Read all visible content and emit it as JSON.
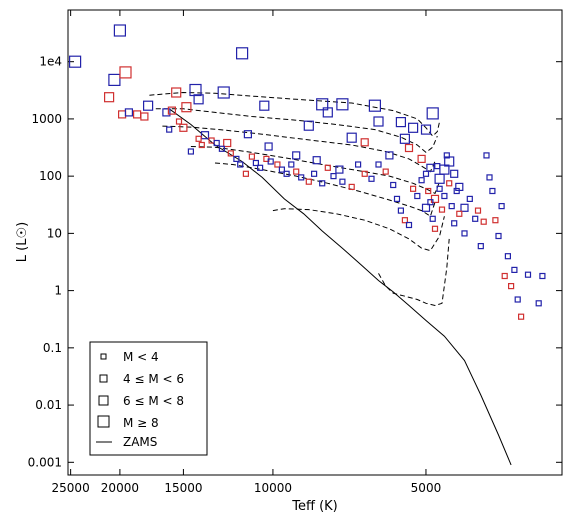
{
  "chart_data": {
    "type": "scatter",
    "title": "",
    "xlabel": "Teff (K)",
    "ylabel": "L (L☉)",
    "x_axis": {
      "log": true,
      "reversed": true,
      "range": [
        25300,
        2700
      ],
      "ticks": [
        25000,
        20000,
        15000,
        10000,
        5000
      ],
      "tick_labels": [
        "25000",
        "20000",
        "15000",
        "10000",
        "5000"
      ]
    },
    "y_axis": {
      "log": true,
      "range": [
        0.0006,
        80000
      ],
      "ticks": [
        0.001,
        0.01,
        0.1,
        1,
        10,
        100,
        1000,
        10000
      ],
      "tick_labels": [
        "0.001",
        "0.01",
        "0.1",
        "1",
        "10",
        "100",
        "1000",
        "1e4"
      ]
    },
    "grid": false,
    "legend": {
      "placement": "bottom-left",
      "entries": [
        {
          "label": "M < 4",
          "marker": "square",
          "size": "small"
        },
        {
          "label": "4 ≤ M < 6",
          "marker": "square",
          "size": "medium"
        },
        {
          "label": "6 ≤ M < 8",
          "marker": "square",
          "size": "large"
        },
        {
          "label": "M ≥ 8",
          "marker": "square",
          "size": "xlarge"
        },
        {
          "label": "ZAMS",
          "marker": "line"
        }
      ]
    },
    "colors": {
      "blue": "#2222aa",
      "red": "#d03030",
      "line": "#000000"
    },
    "zams": {
      "teff": [
        16000,
        14500,
        13000,
        11500,
        10500,
        9500,
        8700,
        8000,
        7300,
        6700,
        6200,
        5800,
        5400,
        5000,
        4600,
        4200,
        3900,
        3600,
        3400
      ],
      "lum": [
        1500,
        800,
        350,
        180,
        95,
        40,
        22,
        11,
        5.5,
        2.8,
        1.5,
        0.95,
        0.55,
        0.3,
        0.16,
        0.06,
        0.015,
        0.003,
        0.0009
      ]
    },
    "tracks": [
      {
        "teff": [
          17500,
          15000,
          13000,
          11000,
          9000,
          7000,
          5800,
          5200,
          5000,
          4850,
          4750,
          4700
        ],
        "lum": [
          2600,
          2900,
          2800,
          2500,
          2200,
          1900,
          1400,
          1000,
          700,
          500,
          600,
          900
        ]
      },
      {
        "teff": [
          17000,
          15000,
          13000,
          11000,
          9000,
          7500,
          6300,
          5600,
          5200,
          5000,
          4850,
          4750
        ],
        "lum": [
          1500,
          1500,
          1300,
          1100,
          950,
          800,
          650,
          480,
          350,
          260,
          320,
          500
        ]
      },
      {
        "teff": [
          16500,
          14500,
          12500,
          10500,
          8500,
          7000,
          6000,
          5400,
          5100,
          4900,
          4800
        ],
        "lum": [
          750,
          720,
          640,
          540,
          430,
          350,
          270,
          200,
          150,
          120,
          180
        ]
      },
      {
        "teff": [
          14500,
          13000,
          11000,
          9500,
          8000,
          6800,
          5900,
          5300,
          5000,
          4800,
          4700
        ],
        "lum": [
          330,
          320,
          260,
          210,
          160,
          125,
          100,
          75,
          60,
          50,
          80
        ]
      },
      {
        "teff": [
          13000,
          12000,
          10500,
          9000,
          7800,
          6800,
          6000,
          5400,
          5100,
          4900,
          4800
        ],
        "lum": [
          170,
          160,
          130,
          100,
          75,
          55,
          40,
          30,
          25,
          20,
          35
        ]
      },
      {
        "teff": [
          10000,
          9500,
          8500,
          7500,
          6600,
          5900,
          5400,
          5100,
          4900,
          4700,
          4600
        ],
        "lum": [
          25,
          27,
          26,
          22,
          17,
          12,
          8,
          5.5,
          5,
          9,
          20
        ]
      },
      {
        "teff": [
          6200,
          6000,
          5800,
          5500,
          5200,
          5000,
          4800,
          4650,
          4550,
          4500
        ],
        "lum": [
          2,
          1.2,
          0.9,
          0.8,
          0.7,
          0.6,
          0.55,
          0.6,
          2.5,
          8
        ]
      }
    ],
    "points": [
      {
        "teff": 24500,
        "lum": 10000,
        "size": "xlarge",
        "color": "blue"
      },
      {
        "teff": 20000,
        "lum": 35000,
        "size": "xlarge",
        "color": "blue"
      },
      {
        "teff": 20500,
        "lum": 4800,
        "size": "xlarge",
        "color": "blue"
      },
      {
        "teff": 19500,
        "lum": 6500,
        "size": "xlarge",
        "color": "red"
      },
      {
        "teff": 11500,
        "lum": 14000,
        "size": "xlarge",
        "color": "blue"
      },
      {
        "teff": 14200,
        "lum": 3200,
        "size": "xlarge",
        "color": "blue"
      },
      {
        "teff": 12500,
        "lum": 2900,
        "size": "xlarge",
        "color": "blue"
      },
      {
        "teff": 8000,
        "lum": 1800,
        "size": "xlarge",
        "color": "blue"
      },
      {
        "teff": 7300,
        "lum": 1800,
        "size": "xlarge",
        "color": "blue"
      },
      {
        "teff": 6300,
        "lum": 1700,
        "size": "xlarge",
        "color": "blue"
      },
      {
        "teff": 4850,
        "lum": 1250,
        "size": "xlarge",
        "color": "blue"
      },
      {
        "teff": 21000,
        "lum": 2400,
        "size": "large",
        "color": "red"
      },
      {
        "teff": 15500,
        "lum": 2900,
        "size": "large",
        "color": "red"
      },
      {
        "teff": 14000,
        "lum": 2200,
        "size": "large",
        "color": "blue"
      },
      {
        "teff": 14800,
        "lum": 1600,
        "size": "large",
        "color": "red"
      },
      {
        "teff": 17600,
        "lum": 1700,
        "size": "large",
        "color": "blue"
      },
      {
        "teff": 10400,
        "lum": 1700,
        "size": "large",
        "color": "blue"
      },
      {
        "teff": 8500,
        "lum": 760,
        "size": "large",
        "color": "blue"
      },
      {
        "teff": 7800,
        "lum": 1300,
        "size": "large",
        "color": "blue"
      },
      {
        "teff": 7000,
        "lum": 470,
        "size": "large",
        "color": "blue"
      },
      {
        "teff": 6200,
        "lum": 900,
        "size": "large",
        "color": "blue"
      },
      {
        "teff": 5600,
        "lum": 880,
        "size": "large",
        "color": "blue"
      },
      {
        "teff": 5300,
        "lum": 700,
        "size": "large",
        "color": "blue"
      },
      {
        "teff": 5000,
        "lum": 650,
        "size": "large",
        "color": "blue"
      },
      {
        "teff": 5500,
        "lum": 450,
        "size": "large",
        "color": "blue"
      },
      {
        "teff": 4500,
        "lum": 180,
        "size": "large",
        "color": "blue"
      },
      {
        "teff": 4600,
        "lum": 130,
        "size": "large",
        "color": "blue"
      },
      {
        "teff": 4700,
        "lum": 90,
        "size": "large",
        "color": "blue"
      },
      {
        "teff": 19800,
        "lum": 1200,
        "size": "medium",
        "color": "red"
      },
      {
        "teff": 19200,
        "lum": 1300,
        "size": "medium",
        "color": "blue"
      },
      {
        "teff": 18500,
        "lum": 1200,
        "size": "medium",
        "color": "red"
      },
      {
        "teff": 17900,
        "lum": 1100,
        "size": "medium",
        "color": "red"
      },
      {
        "teff": 16200,
        "lum": 1300,
        "size": "medium",
        "color": "blue"
      },
      {
        "teff": 15800,
        "lum": 1400,
        "size": "medium",
        "color": "red"
      },
      {
        "teff": 15000,
        "lum": 700,
        "size": "medium",
        "color": "red"
      },
      {
        "teff": 13600,
        "lum": 520,
        "size": "medium",
        "color": "blue"
      },
      {
        "teff": 12300,
        "lum": 380,
        "size": "medium",
        "color": "red"
      },
      {
        "teff": 11200,
        "lum": 540,
        "size": "medium",
        "color": "blue"
      },
      {
        "teff": 10200,
        "lum": 330,
        "size": "medium",
        "color": "blue"
      },
      {
        "teff": 9000,
        "lum": 230,
        "size": "medium",
        "color": "blue"
      },
      {
        "teff": 8200,
        "lum": 190,
        "size": "medium",
        "color": "blue"
      },
      {
        "teff": 7400,
        "lum": 130,
        "size": "medium",
        "color": "blue"
      },
      {
        "teff": 6600,
        "lum": 390,
        "size": "medium",
        "color": "red"
      },
      {
        "teff": 5900,
        "lum": 230,
        "size": "medium",
        "color": "blue"
      },
      {
        "teff": 5400,
        "lum": 310,
        "size": "medium",
        "color": "red"
      },
      {
        "teff": 5100,
        "lum": 200,
        "size": "medium",
        "color": "red"
      },
      {
        "teff": 4900,
        "lum": 140,
        "size": "medium",
        "color": "blue"
      },
      {
        "teff": 4400,
        "lum": 110,
        "size": "medium",
        "color": "blue"
      },
      {
        "teff": 4300,
        "lum": 65,
        "size": "medium",
        "color": "blue"
      },
      {
        "teff": 4200,
        "lum": 28,
        "size": "medium",
        "color": "blue"
      },
      {
        "teff": 4800,
        "lum": 40,
        "size": "medium",
        "color": "red"
      },
      {
        "teff": 5000,
        "lum": 28,
        "size": "medium",
        "color": "blue"
      },
      {
        "teff": 16000,
        "lum": 650,
        "size": "small",
        "color": "blue"
      },
      {
        "teff": 15300,
        "lum": 900,
        "size": "small",
        "color": "red"
      },
      {
        "teff": 14500,
        "lum": 270,
        "size": "small",
        "color": "blue"
      },
      {
        "teff": 14000,
        "lum": 450,
        "size": "small",
        "color": "red"
      },
      {
        "teff": 13800,
        "lum": 350,
        "size": "small",
        "color": "red"
      },
      {
        "teff": 13200,
        "lum": 420,
        "size": "small",
        "color": "red"
      },
      {
        "teff": 12900,
        "lum": 380,
        "size": "small",
        "color": "blue"
      },
      {
        "teff": 12600,
        "lum": 300,
        "size": "small",
        "color": "blue"
      },
      {
        "teff": 12100,
        "lum": 250,
        "size": "small",
        "color": "red"
      },
      {
        "teff": 11800,
        "lum": 200,
        "size": "small",
        "color": "blue"
      },
      {
        "teff": 11600,
        "lum": 160,
        "size": "small",
        "color": "blue"
      },
      {
        "teff": 11300,
        "lum": 110,
        "size": "small",
        "color": "red"
      },
      {
        "teff": 11000,
        "lum": 220,
        "size": "small",
        "color": "red"
      },
      {
        "teff": 10800,
        "lum": 170,
        "size": "small",
        "color": "blue"
      },
      {
        "teff": 10600,
        "lum": 140,
        "size": "small",
        "color": "blue"
      },
      {
        "teff": 10300,
        "lum": 200,
        "size": "small",
        "color": "red"
      },
      {
        "teff": 10100,
        "lum": 180,
        "size": "small",
        "color": "blue"
      },
      {
        "teff": 9800,
        "lum": 160,
        "size": "small",
        "color": "red"
      },
      {
        "teff": 9600,
        "lum": 130,
        "size": "small",
        "color": "blue"
      },
      {
        "teff": 9400,
        "lum": 110,
        "size": "small",
        "color": "blue"
      },
      {
        "teff": 9200,
        "lum": 160,
        "size": "small",
        "color": "blue"
      },
      {
        "teff": 9000,
        "lum": 120,
        "size": "small",
        "color": "red"
      },
      {
        "teff": 8800,
        "lum": 95,
        "size": "small",
        "color": "blue"
      },
      {
        "teff": 8500,
        "lum": 80,
        "size": "small",
        "color": "red"
      },
      {
        "teff": 8300,
        "lum": 110,
        "size": "small",
        "color": "blue"
      },
      {
        "teff": 8000,
        "lum": 75,
        "size": "small",
        "color": "blue"
      },
      {
        "teff": 7800,
        "lum": 140,
        "size": "small",
        "color": "red"
      },
      {
        "teff": 7600,
        "lum": 100,
        "size": "small",
        "color": "blue"
      },
      {
        "teff": 7300,
        "lum": 80,
        "size": "small",
        "color": "blue"
      },
      {
        "teff": 7000,
        "lum": 65,
        "size": "small",
        "color": "red"
      },
      {
        "teff": 6800,
        "lum": 160,
        "size": "small",
        "color": "blue"
      },
      {
        "teff": 6600,
        "lum": 110,
        "size": "small",
        "color": "red"
      },
      {
        "teff": 6400,
        "lum": 90,
        "size": "small",
        "color": "blue"
      },
      {
        "teff": 6200,
        "lum": 160,
        "size": "small",
        "color": "blue"
      },
      {
        "teff": 6000,
        "lum": 120,
        "size": "small",
        "color": "red"
      },
      {
        "teff": 5800,
        "lum": 70,
        "size": "small",
        "color": "blue"
      },
      {
        "teff": 5700,
        "lum": 40,
        "size": "small",
        "color": "blue"
      },
      {
        "teff": 5600,
        "lum": 25,
        "size": "small",
        "color": "blue"
      },
      {
        "teff": 5500,
        "lum": 17,
        "size": "small",
        "color": "red"
      },
      {
        "teff": 5400,
        "lum": 14,
        "size": "small",
        "color": "blue"
      },
      {
        "teff": 5300,
        "lum": 60,
        "size": "small",
        "color": "red"
      },
      {
        "teff": 5200,
        "lum": 45,
        "size": "small",
        "color": "blue"
      },
      {
        "teff": 5100,
        "lum": 85,
        "size": "small",
        "color": "blue"
      },
      {
        "teff": 5000,
        "lum": 110,
        "size": "small",
        "color": "blue"
      },
      {
        "teff": 4950,
        "lum": 55,
        "size": "small",
        "color": "red"
      },
      {
        "teff": 4900,
        "lum": 35,
        "size": "small",
        "color": "blue"
      },
      {
        "teff": 4850,
        "lum": 18,
        "size": "small",
        "color": "blue"
      },
      {
        "teff": 4800,
        "lum": 12,
        "size": "small",
        "color": "red"
      },
      {
        "teff": 4750,
        "lum": 150,
        "size": "small",
        "color": "blue"
      },
      {
        "teff": 4700,
        "lum": 60,
        "size": "small",
        "color": "blue"
      },
      {
        "teff": 4650,
        "lum": 26,
        "size": "small",
        "color": "red"
      },
      {
        "teff": 4600,
        "lum": 45,
        "size": "small",
        "color": "blue"
      },
      {
        "teff": 4550,
        "lum": 230,
        "size": "small",
        "color": "blue"
      },
      {
        "teff": 4500,
        "lum": 75,
        "size": "small",
        "color": "red"
      },
      {
        "teff": 4450,
        "lum": 30,
        "size": "small",
        "color": "blue"
      },
      {
        "teff": 4400,
        "lum": 15,
        "size": "small",
        "color": "blue"
      },
      {
        "teff": 4350,
        "lum": 55,
        "size": "small",
        "color": "blue"
      },
      {
        "teff": 4300,
        "lum": 22,
        "size": "small",
        "color": "red"
      },
      {
        "teff": 4200,
        "lum": 10,
        "size": "small",
        "color": "blue"
      },
      {
        "teff": 4100,
        "lum": 40,
        "size": "small",
        "color": "blue"
      },
      {
        "teff": 4000,
        "lum": 18,
        "size": "small",
        "color": "blue"
      },
      {
        "teff": 3950,
        "lum": 25,
        "size": "small",
        "color": "red"
      },
      {
        "teff": 3900,
        "lum": 6,
        "size": "small",
        "color": "blue"
      },
      {
        "teff": 3850,
        "lum": 16,
        "size": "small",
        "color": "red"
      },
      {
        "teff": 3800,
        "lum": 230,
        "size": "small",
        "color": "blue"
      },
      {
        "teff": 3750,
        "lum": 95,
        "size": "small",
        "color": "blue"
      },
      {
        "teff": 3700,
        "lum": 55,
        "size": "small",
        "color": "blue"
      },
      {
        "teff": 3650,
        "lum": 17,
        "size": "small",
        "color": "red"
      },
      {
        "teff": 3600,
        "lum": 9,
        "size": "small",
        "color": "blue"
      },
      {
        "teff": 3550,
        "lum": 30,
        "size": "small",
        "color": "blue"
      },
      {
        "teff": 3500,
        "lum": 1.8,
        "size": "small",
        "color": "red"
      },
      {
        "teff": 3450,
        "lum": 4,
        "size": "small",
        "color": "blue"
      },
      {
        "teff": 3400,
        "lum": 1.2,
        "size": "small",
        "color": "red"
      },
      {
        "teff": 3350,
        "lum": 2.3,
        "size": "small",
        "color": "blue"
      },
      {
        "teff": 3300,
        "lum": 0.7,
        "size": "small",
        "color": "blue"
      },
      {
        "teff": 3250,
        "lum": 0.35,
        "size": "small",
        "color": "red"
      },
      {
        "teff": 3150,
        "lum": 1.9,
        "size": "small",
        "color": "blue"
      },
      {
        "teff": 3000,
        "lum": 0.6,
        "size": "small",
        "color": "blue"
      },
      {
        "teff": 2950,
        "lum": 1.8,
        "size": "small",
        "color": "blue"
      }
    ]
  }
}
